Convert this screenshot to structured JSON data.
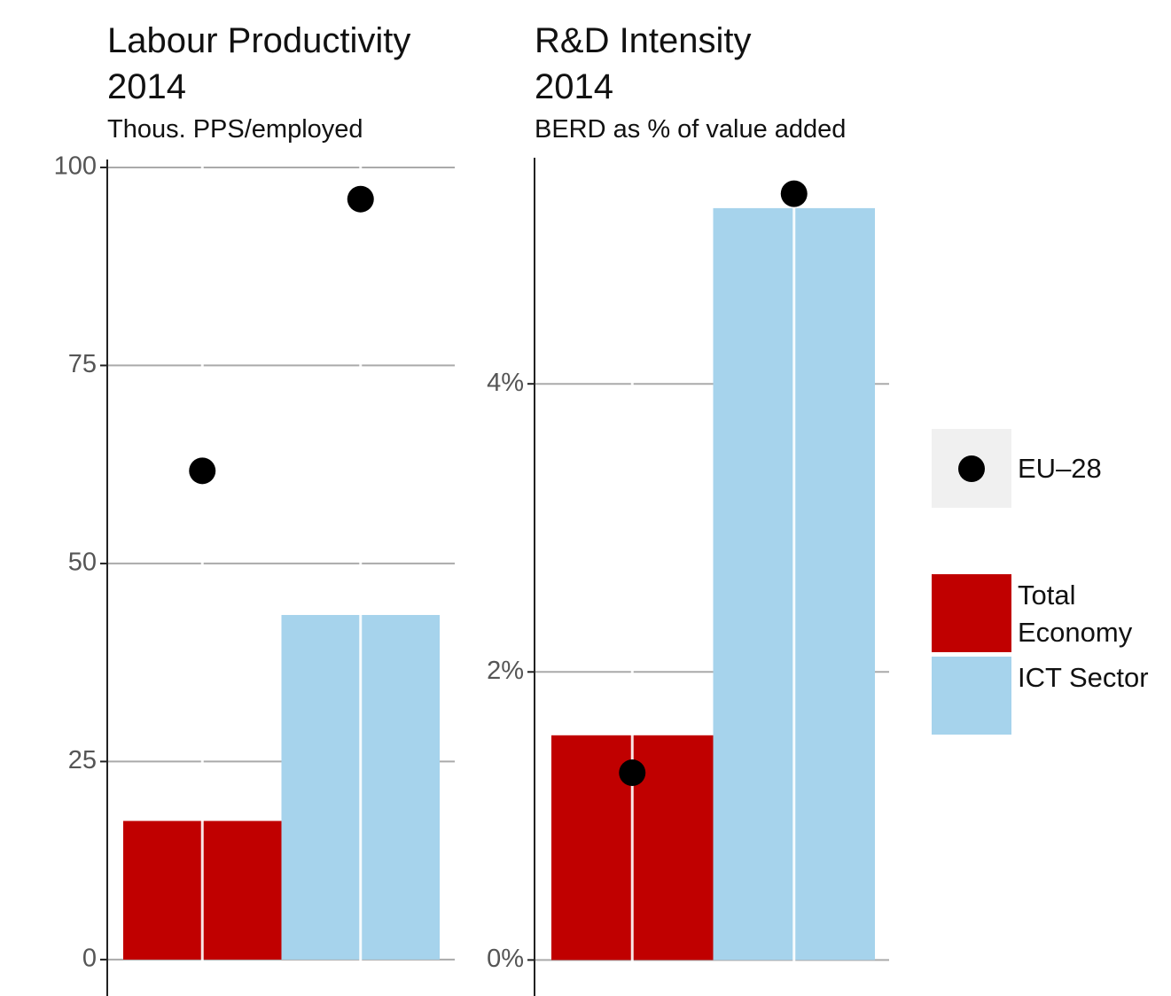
{
  "chart_data": [
    {
      "type": "bar",
      "title": "Labour Productivity 2014",
      "subtitle": "Thous. PPS/employed",
      "categories": [
        "Total Economy",
        "ICT Sector"
      ],
      "values": [
        17.5,
        43.5
      ],
      "colors": [
        "#c00000",
        "#a6d3ec"
      ],
      "points": {
        "name": "EU–28",
        "color": "#000000",
        "values": [
          61.7,
          96
        ]
      },
      "ylim": [
        -4.6,
        101
      ],
      "yticks": [
        0,
        25,
        50,
        75,
        100
      ],
      "grid": true
    },
    {
      "type": "bar",
      "title": "R&D Intensity 2014",
      "subtitle": "BERD as % of value added",
      "categories": [
        "Total Economy",
        "ICT Sector"
      ],
      "values": [
        1.56,
        5.22
      ],
      "colors": [
        "#c00000",
        "#a6d3ec"
      ],
      "points": {
        "name": "EU–28",
        "color": "#000000",
        "values": [
          1.3,
          5.32
        ]
      },
      "ylim": [
        -0.25,
        5.57
      ],
      "yticks": [
        {
          "value": 0,
          "label": "0%"
        },
        {
          "value": 2,
          "label": "2%"
        },
        {
          "value": 4,
          "label": "4%"
        }
      ],
      "grid": true
    }
  ]
}
